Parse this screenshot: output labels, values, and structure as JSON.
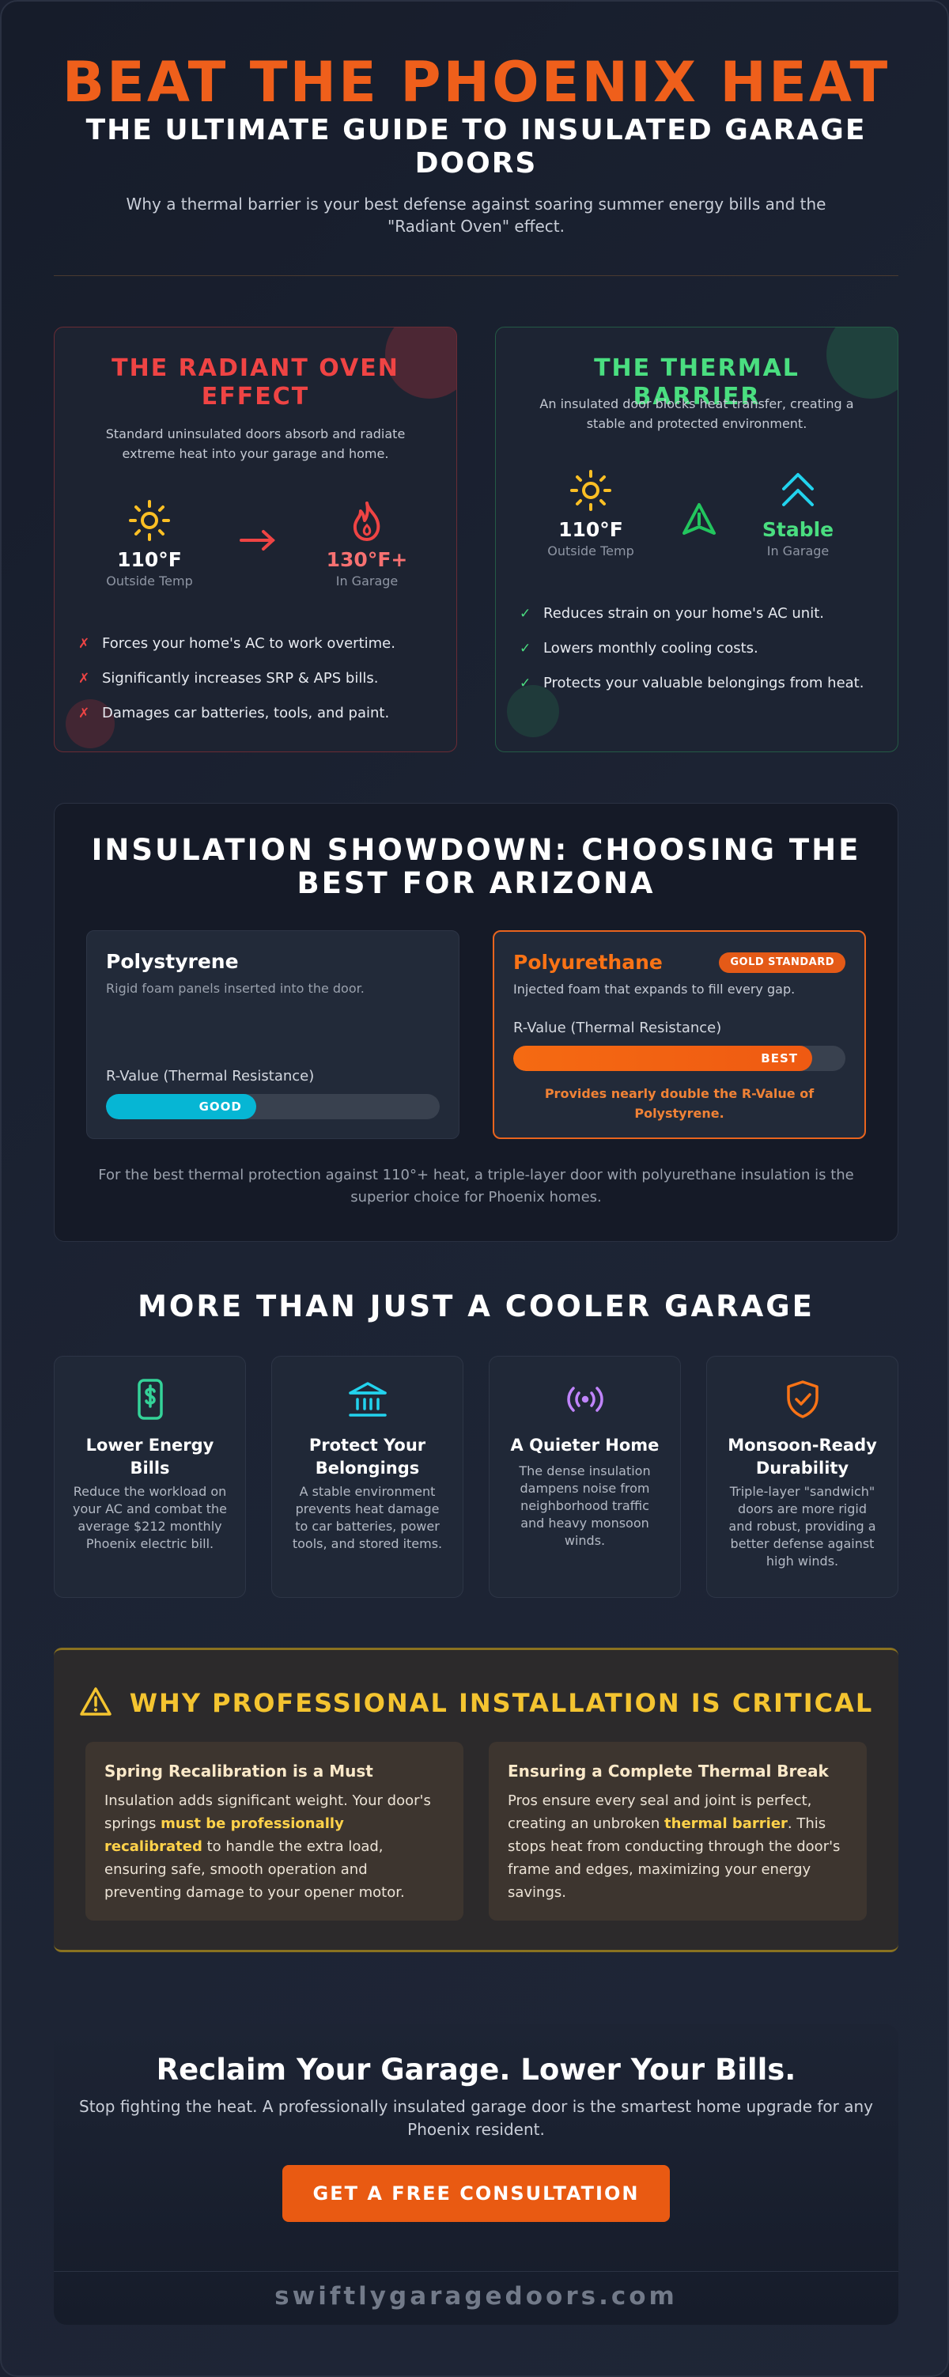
{
  "header": {
    "title": "BEAT THE PHOENIX HEAT",
    "subtitle": "THE ULTIMATE GUIDE TO INSULATED GARAGE DOORS",
    "description": "Why a thermal barrier is your best defense against soaring summer energy bills and the \"Radiant Oven\" effect."
  },
  "radiant": {
    "title": "THE RADIANT OVEN EFFECT",
    "description": "Standard uninsulated doors absorb and radiate extreme heat into your garage and home.",
    "outside_value": "110°F",
    "outside_label": "Outside Temp",
    "inside_value": "130°F+",
    "inside_label": "In Garage",
    "items": [
      "Forces your home's AC to work overtime.",
      "Significantly increases SRP & APS bills.",
      "Damages car batteries, tools, and paint."
    ],
    "mark": "✗",
    "accent": "#ef4444"
  },
  "thermal": {
    "title": "THE THERMAL BARRIER",
    "description": "An insulated door blocks heat transfer, creating a stable and protected environment.",
    "outside_value": "110°F",
    "outside_label": "Outside Temp",
    "inside_value": "Stable",
    "inside_label": "In Garage",
    "items": [
      "Reduces strain on your home's AC unit.",
      "Lowers monthly cooling costs.",
      "Protects your valuable belongings from heat."
    ],
    "mark": "✓",
    "accent": "#4ade80"
  },
  "showdown": {
    "title": "INSULATION SHOWDOWN: CHOOSING THE BEST FOR ARIZONA",
    "polystyrene": {
      "name": "Polystyrene",
      "description": "Rigid foam panels inserted into the door.",
      "rvalue_label": "R-Value (Thermal Resistance)",
      "rating": "GOOD",
      "fill_fraction": 0.45
    },
    "polyurethane": {
      "name": "Polyurethane",
      "badge": "GOLD STANDARD",
      "description": "Injected foam that expands to fill every gap.",
      "rvalue_label": "R-Value (Thermal Resistance)",
      "rating": "BEST",
      "fill_fraction": 0.9,
      "note": "Provides nearly double the R-Value of Polystyrene."
    },
    "footer": "For the best thermal protection against 110°+ heat, a triple-layer door with polyurethane insulation is the superior choice for Phoenix homes."
  },
  "benefits": {
    "title": "MORE THAN JUST A COOLER GARAGE",
    "items": [
      {
        "icon": "money-phone-icon",
        "title": "Lower Energy Bills",
        "text": "Reduce the workload on your AC and combat the average $212 monthly Phoenix electric bill.",
        "color": "#34d399"
      },
      {
        "icon": "building-icon",
        "title": "Protect Your Belongings",
        "text": "A stable environment prevents heat damage to car batteries, power tools, and stored items.",
        "color": "#22d3ee"
      },
      {
        "icon": "sound-waves-icon",
        "title": "A Quieter Home",
        "text": "The dense insulation dampens noise from neighborhood traffic and heavy monsoon winds.",
        "color": "#c084fc"
      },
      {
        "icon": "shield-check-icon",
        "title": "Monsoon-Ready Durability",
        "text": "Triple-layer \"sandwich\" doors are more rigid and robust, providing a better defense against high winds.",
        "color": "#f97316"
      }
    ]
  },
  "professional": {
    "title": "WHY PROFESSIONAL INSTALLATION IS CRITICAL",
    "spring": {
      "title": "Spring Recalibration is a Must",
      "text_before": "Insulation adds significant weight. Your door's springs ",
      "highlight": "must be professionally recalibrated",
      "text_after": " to handle the extra load, ensuring safe, smooth operation and preventing damage to your opener motor."
    },
    "seal": {
      "title": "Ensuring a Complete Thermal Break",
      "text_before": "Pros ensure every seal and joint is perfect, creating an unbroken ",
      "highlight": "thermal barrier",
      "text_after": ". This stops heat from conducting through the door's frame and edges, maximizing your energy savings."
    }
  },
  "cta": {
    "title": "Reclaim Your Garage. Lower Your Bills.",
    "description": "Stop fighting the heat. A professionally insulated garage door is the smartest home upgrade for any Phoenix resident.",
    "button": "GET A FREE CONSULTATION",
    "domain": "swiftlygaragedoors.com"
  },
  "colors": {
    "brand_orange": "#ef5f1b",
    "red": "#ef4444",
    "green": "#4ade80",
    "cyan": "#06b6d4",
    "gold": "#f4c430"
  }
}
